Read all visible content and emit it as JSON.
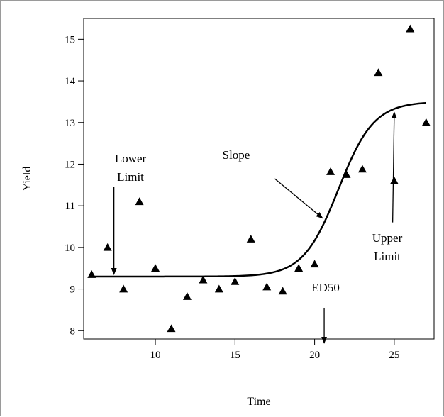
{
  "chart_data": {
    "type": "scatter",
    "xlabel": "Time",
    "ylabel": "Yield",
    "xlim": [
      5.5,
      27.5
    ],
    "ylim": [
      7.8,
      15.5
    ],
    "x_ticks": [
      10,
      15,
      20,
      25
    ],
    "y_ticks": [
      8,
      9,
      10,
      11,
      12,
      13,
      14,
      15
    ],
    "grid": false,
    "legend": "none",
    "marker": "triangle",
    "marker_color": "#000000",
    "points": [
      {
        "x": 6,
        "y": 9.35
      },
      {
        "x": 7,
        "y": 10.0
      },
      {
        "x": 8,
        "y": 9.0
      },
      {
        "x": 9,
        "y": 11.1
      },
      {
        "x": 10,
        "y": 9.5
      },
      {
        "x": 11,
        "y": 8.05
      },
      {
        "x": 12,
        "y": 8.82
      },
      {
        "x": 13,
        "y": 9.22
      },
      {
        "x": 14,
        "y": 9.0
      },
      {
        "x": 15,
        "y": 9.18
      },
      {
        "x": 16,
        "y": 10.2
      },
      {
        "x": 17,
        "y": 9.05
      },
      {
        "x": 18,
        "y": 8.95
      },
      {
        "x": 19,
        "y": 9.5
      },
      {
        "x": 20,
        "y": 9.6
      },
      {
        "x": 21,
        "y": 11.82
      },
      {
        "x": 22,
        "y": 11.75
      },
      {
        "x": 23,
        "y": 11.88
      },
      {
        "x": 24,
        "y": 14.2
      },
      {
        "x": 25,
        "y": 11.6
      },
      {
        "x": 26,
        "y": 15.25
      },
      {
        "x": 27,
        "y": 13.0
      }
    ],
    "fitted_curve": {
      "model": "four-parameter logistic",
      "lower_limit": 9.3,
      "upper_limit": 13.5,
      "ed50": 21.5,
      "slope": 0.9,
      "x_range": [
        6,
        27
      ]
    },
    "annotations": [
      {
        "text_lines": [
          "Lower",
          "Limit"
        ],
        "arrow_from": [
          7.4,
          11.45
        ],
        "arrow_to": [
          7.4,
          9.35
        ]
      },
      {
        "text_lines": [
          "Slope"
        ],
        "arrow_from": [
          17.5,
          11.65
        ],
        "arrow_to": [
          20.5,
          10.7
        ]
      },
      {
        "text_lines": [
          "Upper",
          "Limit"
        ],
        "arrow_from": [
          24.9,
          10.6
        ],
        "arrow_to": [
          25.0,
          13.25
        ]
      },
      {
        "text_lines": [
          "ED50"
        ],
        "arrow_from": [
          20.6,
          8.55
        ],
        "arrow_to": [
          20.6,
          7.7
        ]
      }
    ]
  }
}
